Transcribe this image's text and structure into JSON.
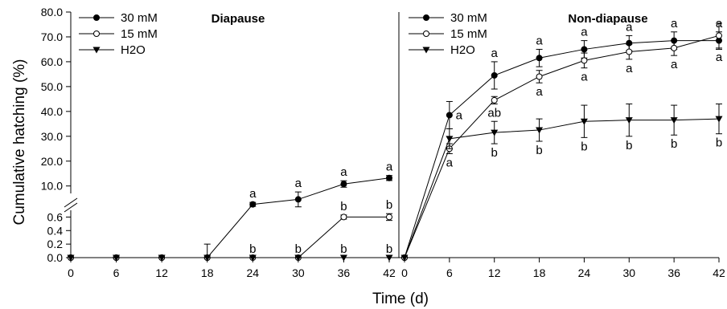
{
  "chart_data": {
    "type": "line",
    "ylabel": "Cumulative hatching (%)",
    "xlabel": "Time (d)",
    "y_break": {
      "below": [
        0.0,
        0.7
      ],
      "above": [
        7.0,
        80.0
      ]
    },
    "y_ticks_lower": [
      "0.0",
      "0.2",
      "0.4",
      "0.6"
    ],
    "y_ticks_upper": [
      "10.0",
      "20.0",
      "30.0",
      "40.0",
      "50.0",
      "60.0",
      "70.0",
      "80.0"
    ],
    "legend": [
      "30 mM",
      "15 mM",
      "H2O"
    ],
    "series_styles": [
      {
        "name": "30 mM",
        "marker": "filled-circle"
      },
      {
        "name": "15 mM",
        "marker": "open-circle"
      },
      {
        "name": "H2O",
        "marker": "filled-triangle-down"
      }
    ],
    "panels": [
      {
        "title": "Diapause",
        "x": [
          0,
          6,
          12,
          18,
          24,
          30,
          36,
          42
        ],
        "x_tick_labels": [
          "0",
          "6",
          "12",
          "18",
          "24",
          "30",
          "36",
          "42"
        ],
        "series": [
          {
            "name": "30 mM",
            "values": [
              0,
              0,
              0,
              0,
              2.6,
              4.6,
              10.8,
              13.2
            ],
            "errors": [
              0,
              0,
              0,
              0.2,
              0.8,
              3.0,
              1.3,
              1.0
            ]
          },
          {
            "name": "15 mM",
            "values": [
              0,
              0,
              0,
              0,
              0,
              0,
              0.6,
              0.6
            ],
            "errors": [
              0,
              0,
              0,
              0,
              0,
              0,
              0.03,
              0.05
            ]
          },
          {
            "name": "H2O",
            "values": [
              0,
              0,
              0,
              0,
              0,
              0,
              0,
              0
            ],
            "errors": [
              0,
              0,
              0,
              0,
              0,
              0,
              0,
              0
            ]
          }
        ],
        "annotations": [
          {
            "x": 24,
            "series": "30 mM",
            "text": "a",
            "pos": "above"
          },
          {
            "x": 30,
            "series": "30 mM",
            "text": "a",
            "pos": "above"
          },
          {
            "x": 36,
            "series": "30 mM",
            "text": "a",
            "pos": "above"
          },
          {
            "x": 42,
            "series": "30 mM",
            "text": "a",
            "pos": "above"
          },
          {
            "x": 24,
            "series": "15 mM",
            "text": "b",
            "pos": "above"
          },
          {
            "x": 30,
            "series": "15 mM",
            "text": "b",
            "pos": "above"
          },
          {
            "x": 36,
            "series": "15 mM",
            "text": "b",
            "pos": "above"
          },
          {
            "x": 42,
            "series": "15 mM",
            "text": "b",
            "pos": "above"
          },
          {
            "x": 36,
            "series": "H2O",
            "text": "b",
            "pos": "above"
          },
          {
            "x": 42,
            "series": "H2O",
            "text": "b",
            "pos": "above"
          }
        ]
      },
      {
        "title": "Non-diapause",
        "x": [
          0,
          6,
          12,
          18,
          24,
          30,
          36,
          42
        ],
        "x_tick_labels": [
          "0",
          "6",
          "12",
          "18",
          "24",
          "30",
          "36",
          "42"
        ],
        "series": [
          {
            "name": "30 mM",
            "values": [
              0,
              38.5,
              54.5,
              61.5,
              65.0,
              67.5,
              68.5,
              68.5
            ],
            "errors": [
              0,
              5.5,
              5.5,
              3.5,
              3.5,
              3.0,
              3.5,
              3.5
            ]
          },
          {
            "name": "15 mM",
            "values": [
              0,
              25.0,
              44.5,
              54.0,
              60.5,
              64.0,
              65.5,
              70.5
            ],
            "errors": [
              0,
              2.0,
              1.5,
              2.5,
              3.0,
              3.0,
              3.0,
              5.0
            ]
          },
          {
            "name": "H2O",
            "values": [
              0,
              29.0,
              31.5,
              32.5,
              36.0,
              36.5,
              36.5,
              37.0
            ],
            "errors": [
              0,
              4.0,
              4.5,
              4.5,
              6.5,
              6.5,
              6.0,
              6.0
            ]
          }
        ],
        "annotations": [
          {
            "x": 6,
            "series": "30 mM",
            "text": "a",
            "pos": "right"
          },
          {
            "x": 12,
            "series": "30 mM",
            "text": "a",
            "pos": "above"
          },
          {
            "x": 18,
            "series": "30 mM",
            "text": "a",
            "pos": "above"
          },
          {
            "x": 24,
            "series": "30 mM",
            "text": "a",
            "pos": "above"
          },
          {
            "x": 30,
            "series": "30 mM",
            "text": "a",
            "pos": "above"
          },
          {
            "x": 36,
            "series": "30 mM",
            "text": "a",
            "pos": "above"
          },
          {
            "x": 42,
            "series": "30 mM",
            "text": "a",
            "pos": "above"
          },
          {
            "x": 6,
            "series": "15 mM",
            "text": "a",
            "pos": "below"
          },
          {
            "x": 12,
            "series": "15 mM",
            "text": "ab",
            "pos": "below"
          },
          {
            "x": 18,
            "series": "15 mM",
            "text": "a",
            "pos": "below"
          },
          {
            "x": 24,
            "series": "15 mM",
            "text": "a",
            "pos": "below"
          },
          {
            "x": 30,
            "series": "15 mM",
            "text": "a",
            "pos": "below"
          },
          {
            "x": 36,
            "series": "15 mM",
            "text": "a",
            "pos": "below"
          },
          {
            "x": 42,
            "series": "15 mM",
            "text": "a",
            "pos": "below"
          },
          {
            "x": 12,
            "series": "H2O",
            "text": "b",
            "pos": "below"
          },
          {
            "x": 18,
            "series": "H2O",
            "text": "b",
            "pos": "below"
          },
          {
            "x": 24,
            "series": "H2O",
            "text": "b",
            "pos": "below"
          },
          {
            "x": 30,
            "series": "H2O",
            "text": "b",
            "pos": "below"
          },
          {
            "x": 36,
            "series": "H2O",
            "text": "b",
            "pos": "below"
          },
          {
            "x": 42,
            "series": "H2O",
            "text": "b",
            "pos": "below"
          }
        ]
      }
    ]
  }
}
